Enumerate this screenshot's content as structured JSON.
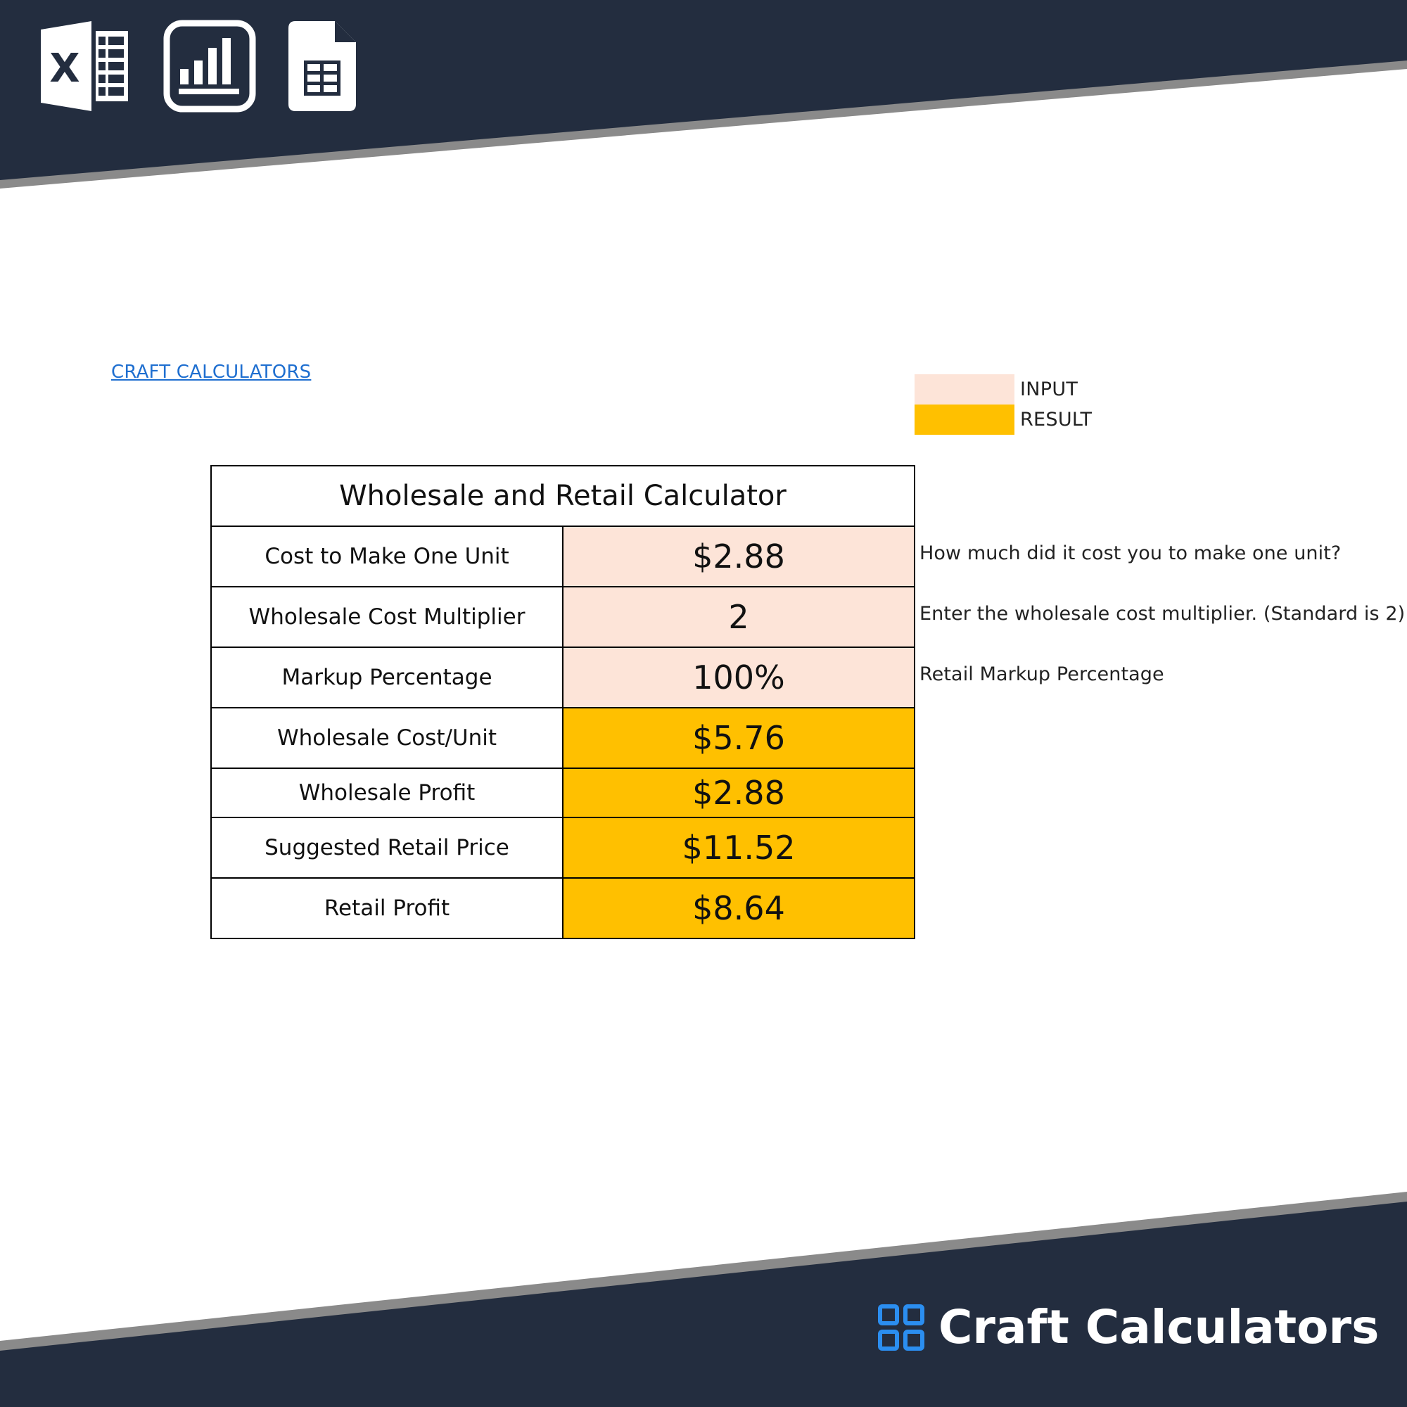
{
  "header": {
    "icons": [
      "excel-icon",
      "bar-chart-icon",
      "spreadsheet-file-icon"
    ]
  },
  "sheet": {
    "link_text": "CRAFT CALCULATORS",
    "legend": [
      {
        "label": "INPUT",
        "color": "#fde4d8"
      },
      {
        "label": "RESULT",
        "color": "#ffc000"
      }
    ]
  },
  "calculator": {
    "title": "Wholesale and Retail Calculator",
    "rows": [
      {
        "label": "Cost to Make One Unit",
        "value": "$2.88",
        "kind": "input",
        "hint": "How much did it cost you to make one unit?"
      },
      {
        "label": "Wholesale Cost Multiplier",
        "value": "2",
        "kind": "input",
        "hint": "Enter the wholesale cost multiplier. (Standard is 2)"
      },
      {
        "label": "Markup Percentage",
        "value": "100%",
        "kind": "input",
        "hint": "Retail Markup Percentage"
      },
      {
        "label": "Wholesale Cost/Unit",
        "value": "$5.76",
        "kind": "result"
      },
      {
        "label": "Wholesale Profit",
        "value": "$2.88",
        "kind": "result"
      },
      {
        "label": "Suggested Retail Price",
        "value": "$11.52",
        "kind": "result"
      },
      {
        "label": "Retail Profit",
        "value": "$8.64",
        "kind": "result"
      }
    ]
  },
  "footer": {
    "brand_name": "Craft Calculators",
    "brand_icon": "grid-icon"
  },
  "colors": {
    "banner": "#232d3f",
    "banner_edge": "#8a8a8a",
    "link": "#1f6fd0",
    "input": "#fde4d8",
    "result": "#ffc000",
    "brand_icon": "#2b8ef0"
  }
}
